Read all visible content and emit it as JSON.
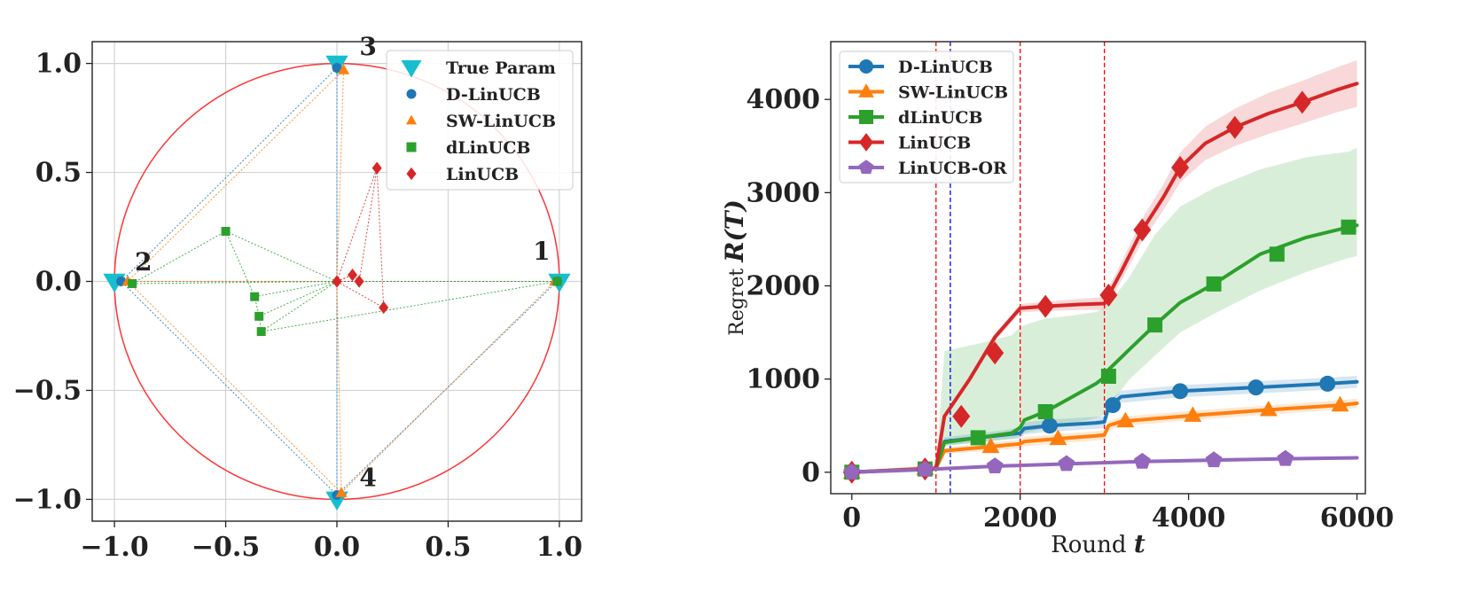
{
  "chart_data": [
    {
      "type": "scatter",
      "title": "",
      "xlabel": "",
      "ylabel": "",
      "xlim": [
        -1.1,
        1.1
      ],
      "ylim": [
        -1.1,
        1.1
      ],
      "xticks": [
        -1.0,
        -0.5,
        0.0,
        0.5,
        1.0
      ],
      "yticks": [
        -1.0,
        -0.5,
        0.0,
        0.5,
        1.0
      ],
      "xtick_labels": [
        "−1.0",
        "−0.5",
        "0.0",
        "0.5",
        "1.0"
      ],
      "ytick_labels": [
        "−1.0",
        "−0.5",
        "0.0",
        "0.5",
        "1.0"
      ],
      "grid": true,
      "legend_position": "top-right",
      "unit_circle": {
        "radius": 1.0,
        "color": "#ff3333"
      },
      "annotations": [
        {
          "text": "1",
          "x": 0.92,
          "y": 0.1
        },
        {
          "text": "2",
          "x": -0.87,
          "y": 0.05
        },
        {
          "text": "3",
          "x": 0.14,
          "y": 1.04
        },
        {
          "text": "4",
          "x": 0.14,
          "y": -0.94
        }
      ],
      "series": [
        {
          "name": "True Param",
          "marker": "triangle-down",
          "color": "#17becf",
          "points": [
            [
              1.0,
              0.0
            ],
            [
              -1.0,
              0.0
            ],
            [
              0.0,
              1.0
            ],
            [
              0.0,
              -1.0
            ]
          ]
        },
        {
          "name": "D-LinUCB",
          "marker": "circle",
          "color": "#1f77b4",
          "points": [
            [
              0.0,
              0.98
            ],
            [
              -0.97,
              0.0
            ],
            [
              0.0,
              -0.98
            ],
            [
              0.99,
              0.0
            ]
          ]
        },
        {
          "name": "SW-LinUCB",
          "marker": "triangle",
          "color": "#ff7f0e",
          "points": [
            [
              0.03,
              0.97
            ],
            [
              -0.94,
              0.0
            ],
            [
              0.02,
              -0.97
            ],
            [
              0.98,
              0.0
            ]
          ]
        },
        {
          "name": "dLinUCB",
          "marker": "square",
          "color": "#2ca02c",
          "points": [
            [
              -0.92,
              -0.01
            ],
            [
              -0.5,
              0.23
            ],
            [
              -0.37,
              -0.07
            ],
            [
              -0.35,
              -0.16
            ],
            [
              -0.34,
              -0.23
            ],
            [
              0.99,
              0.0
            ]
          ]
        },
        {
          "name": "LinUCB",
          "marker": "diamond",
          "color": "#d62728",
          "points": [
            [
              0.0,
              0.0
            ],
            [
              0.07,
              0.03
            ],
            [
              0.1,
              0.0
            ],
            [
              0.18,
              0.52
            ],
            [
              0.21,
              -0.12
            ]
          ]
        }
      ]
    },
    {
      "type": "line",
      "title": "",
      "xlabel_text": "Round ",
      "xlabel_var": "t",
      "ylabel_text": "Regret ",
      "ylabel_var": "R(T)",
      "xlim": [
        -250,
        6100
      ],
      "ylim": [
        -230,
        4620
      ],
      "xticks": [
        0,
        2000,
        4000,
        6000
      ],
      "yticks": [
        0,
        1000,
        2000,
        3000,
        4000
      ],
      "xtick_labels": [
        "0",
        "2000",
        "4000",
        "6000"
      ],
      "ytick_labels": [
        "0",
        "1000",
        "2000",
        "3000",
        "4000"
      ],
      "grid": false,
      "legend_position": "top-left",
      "vlines": [
        {
          "x": 1000,
          "color": "#ff0000",
          "style": "dashed"
        },
        {
          "x": 1170,
          "color": "#0000ff",
          "style": "dashed"
        },
        {
          "x": 2000,
          "color": "#ff0000",
          "style": "dashed"
        },
        {
          "x": 3000,
          "color": "#ff0000",
          "style": "dashed"
        }
      ],
      "series": [
        {
          "name": "D-LinUCB",
          "marker": "circle",
          "color": "#1f77b4",
          "x": [
            0,
            870,
            1000,
            1100,
            1800,
            2000,
            2050,
            2350,
            2900,
            3000,
            3050,
            3200,
            3900,
            4800,
            5650,
            6000
          ],
          "values": [
            0,
            35,
            40,
            330,
            400,
            420,
            470,
            500,
            530,
            540,
            700,
            810,
            870,
            910,
            950,
            970
          ],
          "band": [
            20,
            30,
            35,
            45,
            50,
            60,
            65
          ]
        },
        {
          "name": "SW-LinUCB",
          "marker": "triangle",
          "color": "#ff7f0e",
          "x": [
            0,
            870,
            1000,
            1100,
            1650,
            2000,
            2050,
            2450,
            2900,
            3000,
            3050,
            3200,
            4050,
            4950,
            5800,
            6000
          ],
          "values": [
            0,
            40,
            45,
            230,
            275,
            305,
            330,
            360,
            390,
            400,
            500,
            545,
            610,
            670,
            720,
            740
          ],
          "band": [
            20,
            25,
            30,
            35,
            40,
            45,
            50
          ]
        },
        {
          "name": "dLinUCB",
          "marker": "square",
          "color": "#2ca02c",
          "x": [
            0,
            870,
            1000,
            1100,
            1500,
            1900,
            2000,
            2050,
            2300,
            2600,
            2900,
            3000,
            3050,
            3300,
            3600,
            3900,
            4300,
            4850,
            5400,
            5900,
            6000
          ],
          "values": [
            0,
            35,
            40,
            320,
            370,
            420,
            480,
            560,
            650,
            800,
            950,
            1020,
            1100,
            1320,
            1580,
            1820,
            2020,
            2340,
            2520,
            2630,
            2650
          ],
          "band_upper": [
            0,
            40,
            45,
            1300,
            1380,
            1470,
            1560,
            1580,
            1650,
            1680,
            1720,
            1760,
            1800,
            2100,
            2550,
            2850,
            3050,
            3250,
            3380,
            3440,
            3480
          ],
          "band_lower": [
            0,
            30,
            35,
            280,
            320,
            360,
            380,
            420,
            470,
            520,
            580,
            620,
            700,
            1000,
            1250,
            1500,
            1700,
            1950,
            2150,
            2300,
            2320
          ]
        },
        {
          "name": "LinUCB",
          "marker": "diamond",
          "color": "#d62728",
          "x": [
            0,
            870,
            1000,
            1100,
            1400,
            1700,
            2000,
            2300,
            2700,
            3000,
            3050,
            3200,
            3450,
            3700,
            3900,
            4200,
            4550,
            4950,
            5350,
            5750,
            6000
          ],
          "values": [
            0,
            35,
            45,
            600,
            1000,
            1450,
            1760,
            1780,
            1800,
            1810,
            1900,
            2150,
            2600,
            2950,
            3270,
            3530,
            3700,
            3850,
            3970,
            4100,
            4170
          ],
          "band": [
            0,
            10,
            15,
            25,
            30,
            40,
            45,
            50,
            60,
            70,
            80,
            100,
            120,
            140,
            160,
            180,
            200,
            220,
            230,
            240,
            250
          ]
        },
        {
          "name": "LinUCB-OR",
          "marker": "pentagon",
          "color": "#9467bd",
          "x": [
            0,
            870,
            1000,
            1700,
            2550,
            3450,
            4300,
            5150,
            6000
          ],
          "values": [
            0,
            30,
            35,
            65,
            90,
            115,
            130,
            145,
            155
          ],
          "band": [
            10,
            10,
            10,
            10,
            10,
            10,
            10
          ]
        }
      ],
      "markers_at": {
        "D-LinUCB": [
          [
            0,
            0
          ],
          [
            870,
            35
          ],
          [
            2350,
            500
          ],
          [
            3100,
            720
          ],
          [
            3900,
            870
          ],
          [
            4800,
            910
          ],
          [
            5650,
            950
          ]
        ],
        "SW-LinUCB": [
          [
            0,
            0
          ],
          [
            870,
            40
          ],
          [
            1650,
            275
          ],
          [
            2450,
            360
          ],
          [
            3250,
            550
          ],
          [
            4050,
            610
          ],
          [
            4950,
            670
          ],
          [
            5800,
            720
          ]
        ],
        "dLinUCB": [
          [
            0,
            0
          ],
          [
            870,
            35
          ],
          [
            1500,
            370
          ],
          [
            2300,
            650
          ],
          [
            3050,
            1030
          ],
          [
            3600,
            1580
          ],
          [
            4300,
            2020
          ],
          [
            5050,
            2340
          ],
          [
            5900,
            2630
          ]
        ],
        "LinUCB": [
          [
            0,
            0
          ],
          [
            870,
            35
          ],
          [
            1300,
            600
          ],
          [
            1700,
            1280
          ],
          [
            2300,
            1780
          ],
          [
            3050,
            1900
          ],
          [
            3450,
            2600
          ],
          [
            3900,
            3270
          ],
          [
            4550,
            3700
          ],
          [
            5350,
            3970
          ]
        ],
        "LinUCB-OR": [
          [
            0,
            0
          ],
          [
            870,
            30
          ],
          [
            1700,
            65
          ],
          [
            2550,
            90
          ],
          [
            3450,
            115
          ],
          [
            4300,
            130
          ],
          [
            5150,
            145
          ]
        ]
      }
    }
  ]
}
